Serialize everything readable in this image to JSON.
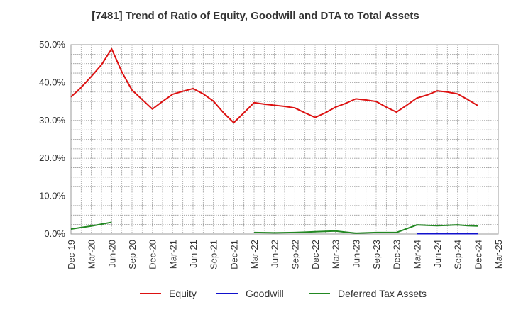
{
  "chart_data": {
    "type": "line",
    "title": "[7481]  Trend of Ratio of Equity, Goodwill and DTA to Total Assets",
    "xlabel": "",
    "ylabel": "",
    "ylim": [
      0,
      50
    ],
    "y_ticks": [
      "0.0%",
      "10.0%",
      "20.0%",
      "30.0%",
      "40.0%",
      "50.0%"
    ],
    "x_ticks": [
      "Dec-19",
      "Mar-20",
      "Jun-20",
      "Sep-20",
      "Dec-20",
      "Mar-21",
      "Jun-21",
      "Sep-21",
      "Dec-21",
      "Mar-22",
      "Jun-22",
      "Sep-22",
      "Dec-22",
      "Mar-23",
      "Jun-23",
      "Sep-23",
      "Dec-23",
      "Mar-24",
      "Jun-24",
      "Sep-24",
      "Dec-24",
      "Mar-25"
    ],
    "grid": true,
    "legend_position": "bottom",
    "series": [
      {
        "name": "Equity",
        "color": "#dd1111",
        "values": [
          36.2,
          38.7,
          41.6,
          44.7,
          48.9,
          42.8,
          38.0,
          35.5,
          33.0,
          35.0,
          36.9,
          37.7,
          38.4,
          37.0,
          35.1,
          32.0,
          29.4,
          32.0,
          34.7,
          34.3,
          34.0,
          33.7,
          33.3,
          32.0,
          30.8,
          32.0,
          33.5,
          34.5,
          35.7,
          35.4,
          35.0,
          33.5,
          32.2,
          34.0,
          35.9,
          36.7,
          37.8,
          37.5,
          37.0,
          35.5,
          33.9
        ]
      },
      {
        "name": "Goodwill",
        "color": "#1111cc",
        "values": [
          null,
          null,
          null,
          null,
          null,
          null,
          null,
          null,
          null,
          null,
          null,
          null,
          null,
          null,
          null,
          null,
          null,
          null,
          null,
          null,
          null,
          null,
          null,
          null,
          null,
          null,
          null,
          null,
          null,
          null,
          null,
          null,
          null,
          null,
          0.1,
          0.1,
          0.1,
          0.1,
          0.1,
          0.1,
          0.1
        ]
      },
      {
        "name": "Deferred Tax Assets",
        "color": "#228822",
        "values": [
          1.3,
          1.7,
          2.1,
          2.6,
          3.1,
          null,
          null,
          null,
          null,
          null,
          null,
          null,
          null,
          null,
          null,
          null,
          null,
          null,
          0.4,
          0.35,
          0.3,
          0.35,
          0.4,
          0.5,
          0.6,
          0.7,
          0.8,
          0.5,
          0.2,
          0.3,
          0.4,
          0.4,
          0.4,
          1.4,
          2.4,
          2.3,
          2.2,
          2.3,
          2.4,
          2.2,
          2.1
        ]
      }
    ]
  }
}
